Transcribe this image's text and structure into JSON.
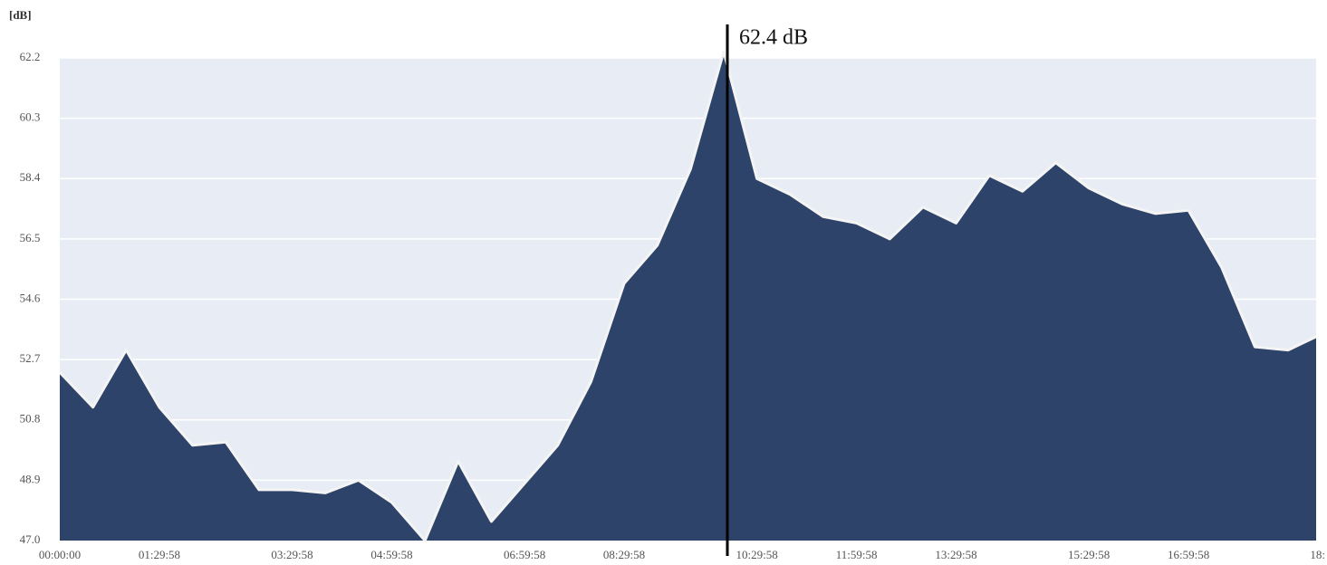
{
  "chart_data": {
    "type": "area",
    "y_label": "[dB]",
    "annotation": "62.4 dB",
    "categories": [
      "00:00:00",
      null,
      null,
      "01:29:58",
      null,
      null,
      null,
      "03:29:58",
      null,
      null,
      "04:59:58",
      null,
      null,
      null,
      "06:59:58",
      null,
      null,
      "08:29:58",
      null,
      null,
      null,
      "10:29:58",
      null,
      null,
      "11:59:58",
      null,
      null,
      "13:29:58",
      null,
      null,
      null,
      "15:29:58",
      null,
      null,
      "16:59:58",
      null,
      null,
      null,
      "18:"
    ],
    "values": [
      52.3,
      51.2,
      53.0,
      51.2,
      50.0,
      50.1,
      48.6,
      48.6,
      48.5,
      48.9,
      48.2,
      47.0,
      49.5,
      47.6,
      48.8,
      50.0,
      52.0,
      55.1,
      56.3,
      58.7,
      62.4,
      58.4,
      57.9,
      57.2,
      57.0,
      56.5,
      57.5,
      57.0,
      58.5,
      58.0,
      58.9,
      58.1,
      57.6,
      57.3,
      57.4,
      55.6,
      53.1,
      53.0,
      53.5
    ],
    "color": "#2e4369",
    "ylim": [
      47.0,
      62.2
    ],
    "yticks": [
      {
        "value": 47,
        "label": "47.0"
      },
      48.9,
      50.8,
      52.7,
      54.6,
      56.5,
      58.4,
      60.3,
      62.2
    ],
    "grid": true
  }
}
